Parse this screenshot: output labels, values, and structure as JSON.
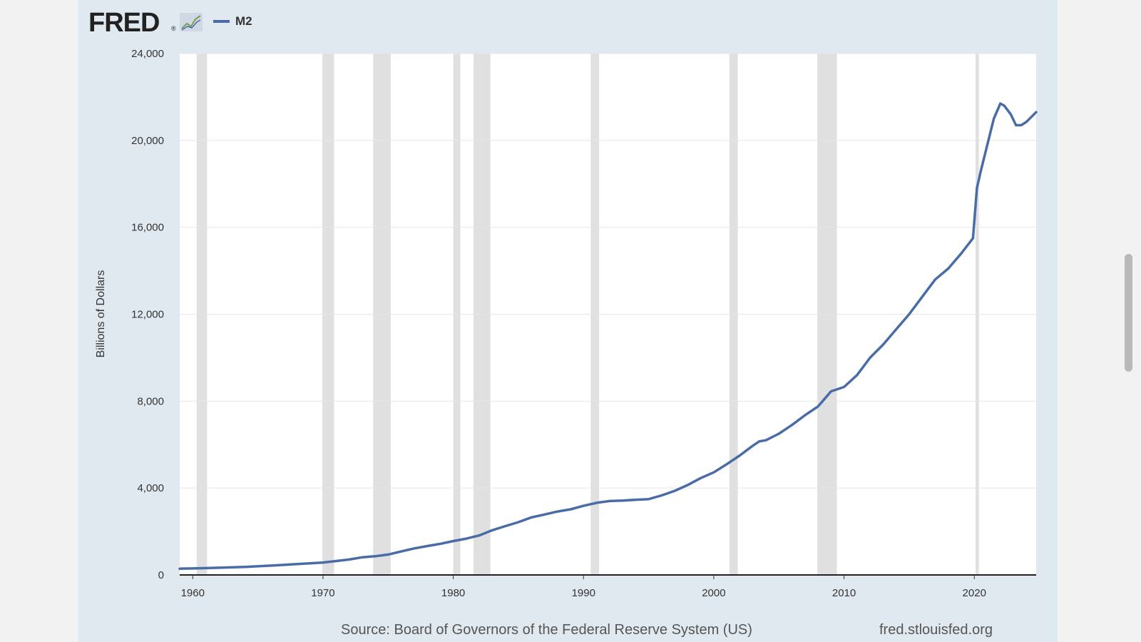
{
  "logo": {
    "text": "FRED",
    "registered": "®"
  },
  "legend": {
    "label": "M2"
  },
  "colors": {
    "series": "#4a6ca6",
    "recession": "#e0e0e0",
    "panel": "#e1e9f0",
    "plot": "#ffffff",
    "grid": "#e6e6e6"
  },
  "footer": {
    "source": "Source: Board of Governors of the Federal Reserve System (US)",
    "site": "fred.stlouisfed.org"
  },
  "chart_data": {
    "type": "line",
    "ylabel": "Billions of Dollars",
    "xlabel": "",
    "title": "",
    "xlim": [
      1959,
      2024.75
    ],
    "ylim": [
      0,
      24000
    ],
    "x_ticks": [
      1960,
      1970,
      1980,
      1990,
      2000,
      2010,
      2020
    ],
    "x_tick_labels": [
      "1960",
      "1970",
      "1980",
      "1990",
      "2000",
      "2010",
      "2020"
    ],
    "y_ticks": [
      0,
      4000,
      8000,
      12000,
      16000,
      20000,
      24000
    ],
    "y_tick_labels": [
      "0",
      "4,000",
      "8,000",
      "12,000",
      "16,000",
      "20,000",
      "24,000"
    ],
    "grid": true,
    "legend_position": "top-left",
    "recessions": [
      [
        1960.3,
        1961.1
      ],
      [
        1969.95,
        1970.85
      ],
      [
        1973.85,
        1975.2
      ],
      [
        1980.0,
        1980.55
      ],
      [
        1981.55,
        1982.85
      ],
      [
        1990.55,
        1991.2
      ],
      [
        2001.2,
        2001.85
      ],
      [
        2007.95,
        2009.45
      ],
      [
        2020.1,
        2020.35
      ]
    ],
    "series": [
      {
        "name": "M2",
        "x": [
          1959,
          1960,
          1962,
          1964,
          1966,
          1968,
          1970,
          1971,
          1972,
          1973,
          1974,
          1975,
          1976,
          1977,
          1978,
          1979,
          1980,
          1981,
          1982,
          1983,
          1984,
          1985,
          1986,
          1987,
          1988,
          1989,
          1990,
          1991,
          1992,
          1993,
          1994,
          1995,
          1996,
          1997,
          1998,
          1999,
          2000,
          2001,
          2002,
          2003,
          2003.5,
          2004,
          2005,
          2006,
          2007,
          2008,
          2008.5,
          2009,
          2010,
          2011,
          2011.5,
          2012,
          2013,
          2014,
          2015,
          2016,
          2017,
          2018,
          2019,
          2019.9,
          2020.2,
          2020.5,
          2021,
          2021.5,
          2022,
          2022.3,
          2022.8,
          2023.2,
          2023.6,
          2024,
          2024.75
        ],
        "values": [
          290,
          300,
          330,
          370,
          430,
          500,
          570,
          640,
          710,
          810,
          860,
          940,
          1080,
          1220,
          1330,
          1430,
          1560,
          1670,
          1820,
          2060,
          2250,
          2430,
          2650,
          2780,
          2920,
          3020,
          3180,
          3320,
          3400,
          3420,
          3460,
          3490,
          3660,
          3870,
          4140,
          4460,
          4720,
          5100,
          5500,
          5950,
          6150,
          6200,
          6500,
          6900,
          7350,
          7750,
          8100,
          8450,
          8650,
          9200,
          9600,
          10000,
          10600,
          11300,
          12000,
          12800,
          13600,
          14100,
          14800,
          15500,
          17800,
          18600,
          19800,
          21000,
          21700,
          21600,
          21200,
          20700,
          20700,
          20850,
          21300
        ]
      }
    ]
  }
}
